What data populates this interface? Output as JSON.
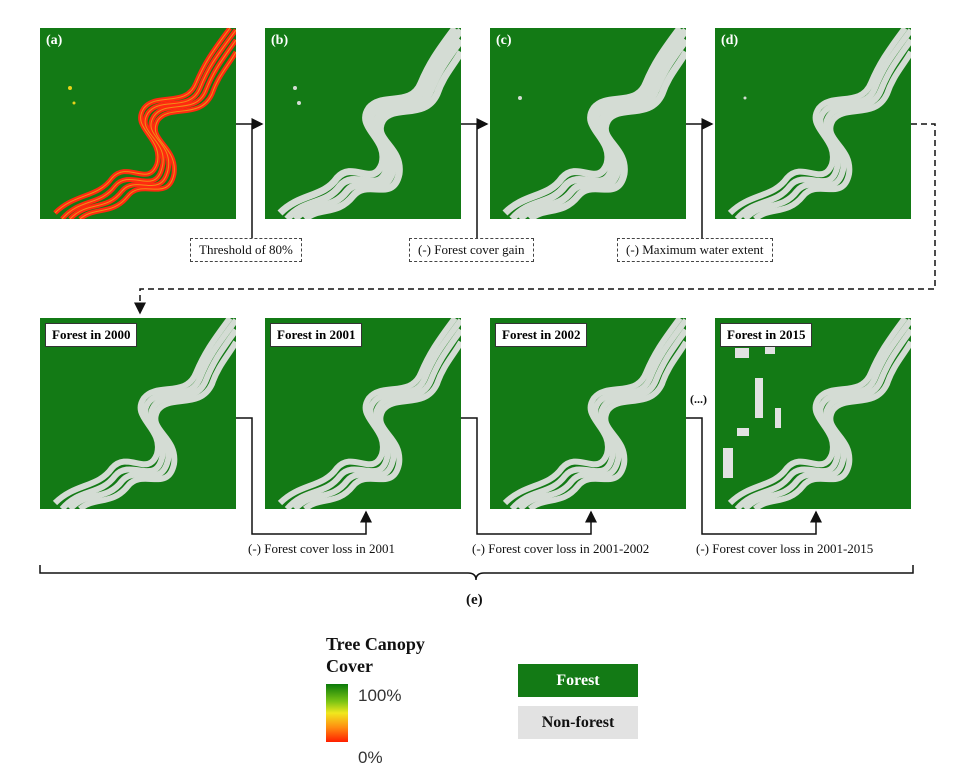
{
  "panels_top": [
    {
      "label": "(a)"
    },
    {
      "label": "(b)"
    },
    {
      "label": "(c)"
    },
    {
      "label": "(d)"
    }
  ],
  "panels_bottom": [
    {
      "title": "Forest in 2000"
    },
    {
      "title": "Forest in 2001"
    },
    {
      "title": "Forest in 2002"
    },
    {
      "title": "Forest in 2015"
    }
  ],
  "steps": {
    "threshold": "Threshold of 80%",
    "gain": "(-) Forest cover gain",
    "water": "(-) Maximum water extent"
  },
  "loss_steps": [
    "(-) Forest cover loss in 2001",
    "(-) Forest cover loss in 2001-2002",
    "(-) Forest cover loss in 2001-2015"
  ],
  "ellipsis": "(...)",
  "group_label": "(e)",
  "legend": {
    "canopy_title_1": "Tree Canopy",
    "canopy_title_2": "Cover",
    "max": "100%",
    "min": "0%",
    "forest": "Forest",
    "nonforest": "Non-forest"
  },
  "colors": {
    "forest": "#137a15",
    "nonforest": "#e2e2e2",
    "river_canopy": "#ff2a10",
    "river_mask": "#d4dcd4"
  }
}
